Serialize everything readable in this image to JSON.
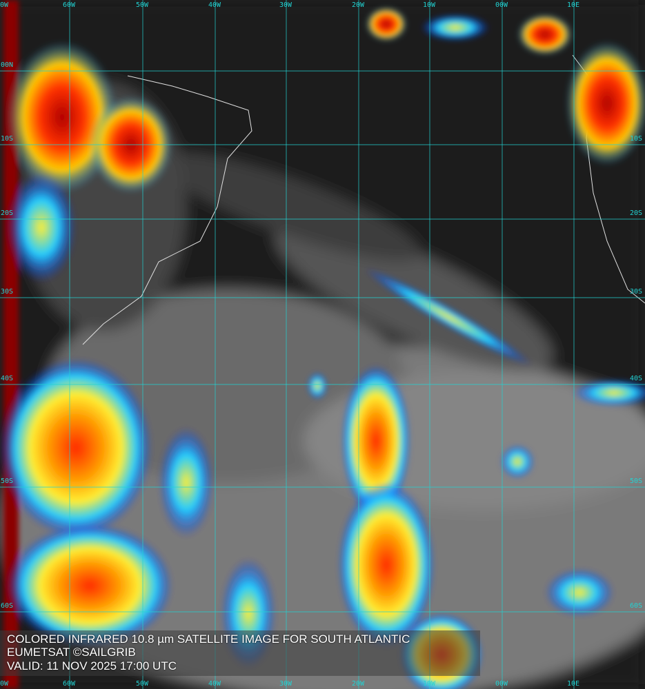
{
  "caption": {
    "line1": "COLORED INFRARED 10.8 µm SATELLITE IMAGE FOR SOUTH ATLANTIC",
    "line2": "EUMETSAT ©SAILGRIB",
    "line3": "VALID:  11 NOV 2025 17:00 UTC"
  },
  "grid": {
    "color": "#22d3d3",
    "longitude_labels": [
      "0W",
      "60W",
      "50W",
      "40W",
      "30W",
      "20W",
      "10W",
      "00W",
      "10E"
    ],
    "latitude_labels_left": [
      "00N",
      "10S",
      "20S",
      "30S",
      "40S",
      "50S",
      "60S"
    ],
    "latitude_labels_right": [
      "10S",
      "20S",
      "30S",
      "40S",
      "50S",
      "60S"
    ]
  },
  "colorscale": [
    "#8b0000",
    "#ff2a00",
    "#ff9900",
    "#ffff33",
    "#22ccff",
    "#0022ff",
    "#bfbfbf",
    "#1c1c1c"
  ]
}
